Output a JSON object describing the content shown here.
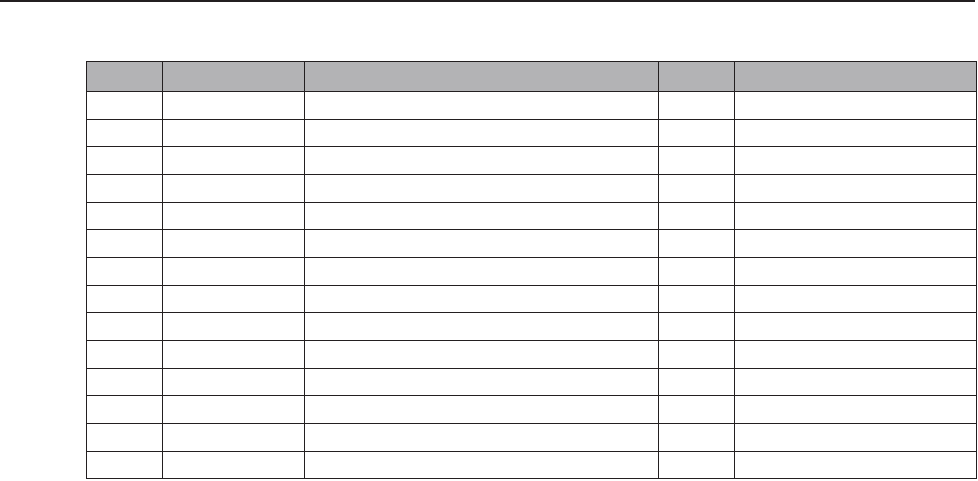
{
  "colors": {
    "header_fill": "#b3b3b5",
    "rule": "#231f20"
  },
  "table": {
    "headers": [
      "",
      "",
      "",
      "",
      ""
    ],
    "rows": [
      [
        "",
        "",
        "",
        "",
        ""
      ],
      [
        "",
        "",
        "",
        "",
        ""
      ],
      [
        "",
        "",
        "",
        "",
        ""
      ],
      [
        "",
        "",
        "",
        "",
        ""
      ],
      [
        "",
        "",
        "",
        "",
        ""
      ],
      [
        "",
        "",
        "",
        "",
        ""
      ],
      [
        "",
        "",
        "",
        "",
        ""
      ],
      [
        "",
        "",
        "",
        "",
        ""
      ],
      [
        "",
        "",
        "",
        "",
        ""
      ],
      [
        "",
        "",
        "",
        "",
        ""
      ],
      [
        "",
        "",
        "",
        "",
        ""
      ],
      [
        "",
        "",
        "",
        "",
        ""
      ],
      [
        "",
        "",
        "",
        "",
        ""
      ],
      [
        "",
        "",
        "",
        "",
        ""
      ]
    ]
  }
}
